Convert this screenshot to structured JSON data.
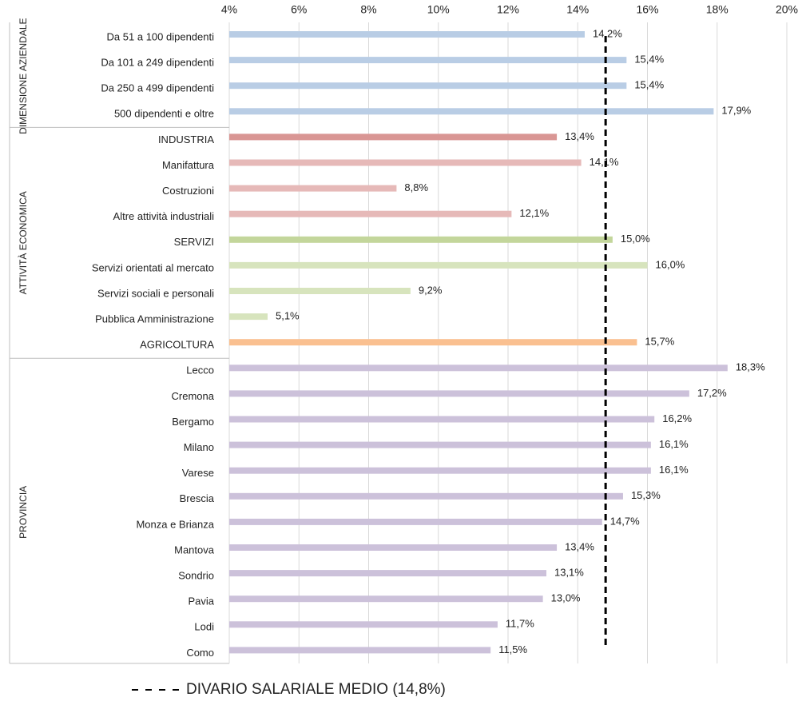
{
  "chart_data": {
    "type": "bar",
    "orientation": "horizontal",
    "xlim": [
      4,
      20
    ],
    "xticks": [
      {
        "value": 4,
        "label": "4%"
      },
      {
        "value": 6,
        "label": "6%"
      },
      {
        "value": 8,
        "label": "8%"
      },
      {
        "value": 10,
        "label": "10%"
      },
      {
        "value": 12,
        "label": "12%"
      },
      {
        "value": 14,
        "label": "14%"
      },
      {
        "value": 16,
        "label": "16%"
      },
      {
        "value": 18,
        "label": "18%"
      },
      {
        "value": 20,
        "label": "20%"
      }
    ],
    "grid": true,
    "groups": [
      {
        "label": "DIMENSIONE AZIENDALE",
        "categories": [
          "Da 51 a 100 dipendenti",
          "Da 101 a 249 dipendenti",
          "Da 250 a 499 dipendenti",
          "500 dipendenti e oltre"
        ],
        "values": [
          14.2,
          15.4,
          15.4,
          17.9
        ],
        "value_labels": [
          "14,2%",
          "15,4%",
          "15,4%",
          "17,9%"
        ],
        "colors": [
          "#b9cde5",
          "#b9cde5",
          "#b9cde5",
          "#b9cde5"
        ]
      },
      {
        "label": "ATTIVITÀ ECONOMICA",
        "categories": [
          "INDUSTRIA",
          "Manifattura",
          "Costruzioni",
          "Altre attività industriali",
          "SERVIZI",
          "Servizi orientati al mercato",
          "Servizi sociali e personali",
          "Pubblica Amministrazione",
          "AGRICOLTURA"
        ],
        "values": [
          13.4,
          14.1,
          8.8,
          12.1,
          15.0,
          16.0,
          9.2,
          5.1,
          15.7
        ],
        "value_labels": [
          "13,4%",
          "14,1%",
          "8,8%",
          "12,1%",
          "15,0%",
          "16,0%",
          "9,2%",
          "5,1%",
          "15,7%"
        ],
        "colors": [
          "#d99694",
          "#e6b9b8",
          "#e6b9b8",
          "#e6b9b8",
          "#c3d69b",
          "#d7e4bd",
          "#d7e4bd",
          "#d7e4bd",
          "#fac090"
        ]
      },
      {
        "label": "PROVINCIA",
        "categories": [
          "Lecco",
          "Cremona",
          "Bergamo",
          "Milano",
          "Varese",
          "Brescia",
          "Monza e Brianza",
          "Mantova",
          "Sondrio",
          "Pavia",
          "Lodi",
          "Como"
        ],
        "values": [
          18.3,
          17.2,
          16.2,
          16.1,
          16.1,
          15.3,
          14.7,
          13.4,
          13.1,
          13.0,
          11.7,
          11.5
        ],
        "value_labels": [
          "18,3%",
          "17,2%",
          "16,2%",
          "16,1%",
          "16,1%",
          "15,3%",
          "14,7%",
          "13,4%",
          "13,1%",
          "13,0%",
          "11,7%",
          "11,5%"
        ],
        "colors": [
          "#ccc1da",
          "#ccc1da",
          "#ccc1da",
          "#ccc1da",
          "#ccc1da",
          "#ccc1da",
          "#ccc1da",
          "#ccc1da",
          "#ccc1da",
          "#ccc1da",
          "#ccc1da",
          "#ccc1da"
        ]
      }
    ],
    "reference_line": {
      "value": 14.8,
      "label": "DIVARIO SALARIALE MEDIO (14,8%)",
      "color": "#000000"
    }
  }
}
